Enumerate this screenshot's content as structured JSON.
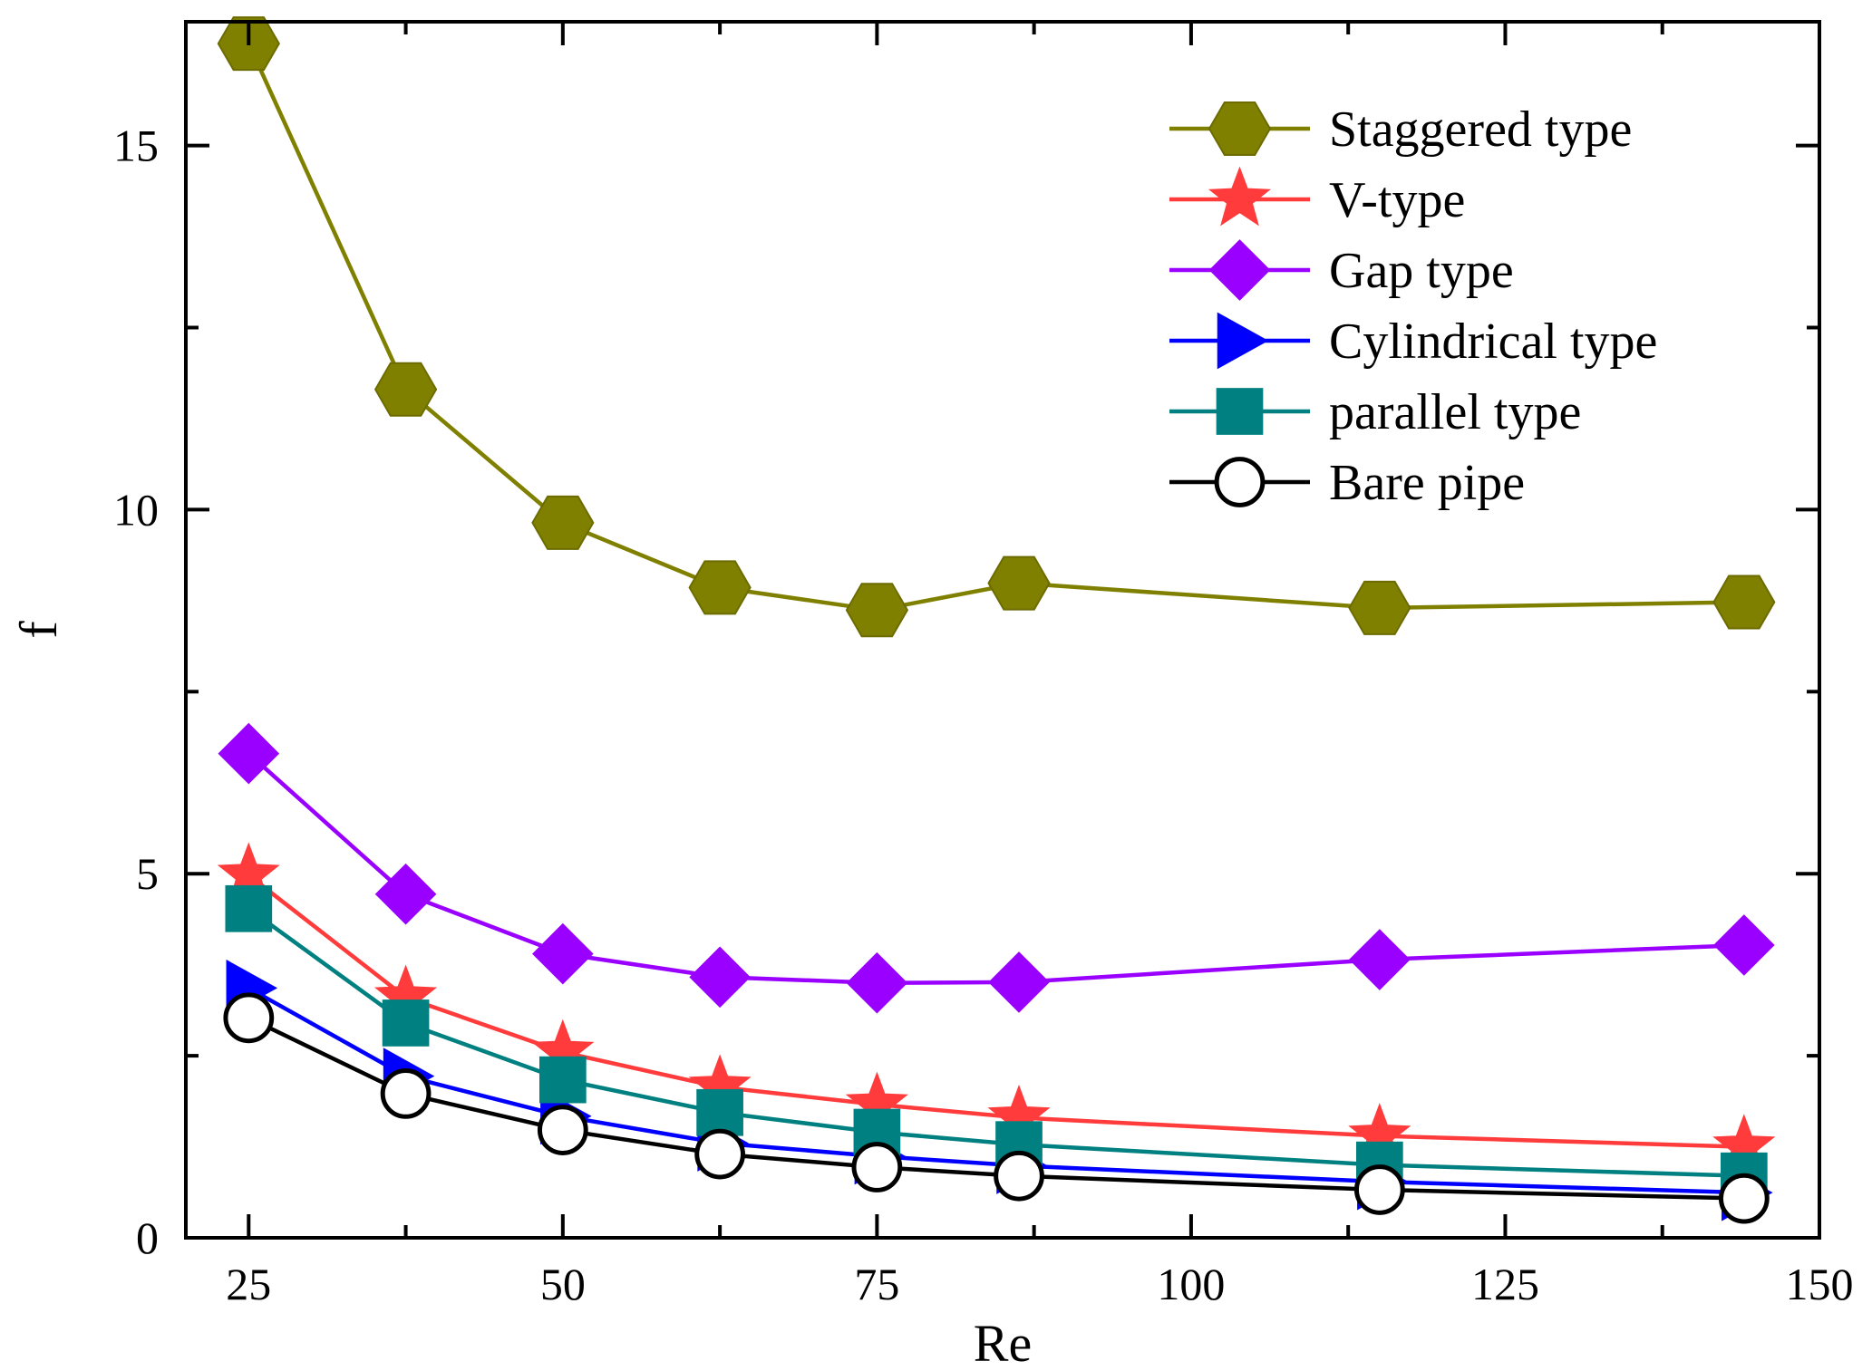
{
  "chart_data": {
    "type": "line",
    "title": "",
    "xlabel": "Re",
    "ylabel": "f",
    "xlim": [
      20,
      150
    ],
    "ylim": [
      0,
      16.7
    ],
    "x_ticks": [
      25,
      50,
      75,
      100,
      125,
      150
    ],
    "x_tick_labels": [
      "25",
      "50",
      "75",
      "100",
      "125",
      "150"
    ],
    "y_ticks": [
      0,
      5,
      10,
      15
    ],
    "y_tick_labels": [
      "0",
      "5",
      "10",
      "15"
    ],
    "grid": false,
    "legend_position": "top-right",
    "x": [
      25,
      37.5,
      50,
      62.5,
      75,
      86.3,
      115,
      144
    ],
    "series": [
      {
        "name": "Staggered type",
        "color": "#808000",
        "marker": "hexagon",
        "filled": true,
        "values": [
          16.4,
          11.65,
          9.82,
          8.93,
          8.62,
          8.99,
          8.65,
          8.73
        ]
      },
      {
        "name": "V-type",
        "color": "#ff3b3b",
        "marker": "star",
        "filled": true,
        "values": [
          4.98,
          3.3,
          2.55,
          2.07,
          1.83,
          1.65,
          1.4,
          1.25
        ]
      },
      {
        "name": "Gap type",
        "color": "#9900ff",
        "marker": "diamond",
        "filled": true,
        "values": [
          6.65,
          4.72,
          3.9,
          3.58,
          3.5,
          3.51,
          3.82,
          4.02
        ]
      },
      {
        "name": "Cylindrical type",
        "color": "#0000ff",
        "marker": "triangle-right",
        "filled": true,
        "values": [
          3.43,
          2.22,
          1.67,
          1.3,
          1.12,
          0.99,
          0.77,
          0.62
        ]
      },
      {
        "name": "parallel type",
        "color": "#008080",
        "marker": "square",
        "filled": true,
        "values": [
          4.52,
          2.95,
          2.17,
          1.72,
          1.45,
          1.28,
          1.0,
          0.85
        ]
      },
      {
        "name": "Bare pipe",
        "color": "#000000",
        "marker": "circle",
        "filled": false,
        "values": [
          3.02,
          1.98,
          1.48,
          1.15,
          0.97,
          0.85,
          0.66,
          0.54
        ]
      }
    ]
  }
}
